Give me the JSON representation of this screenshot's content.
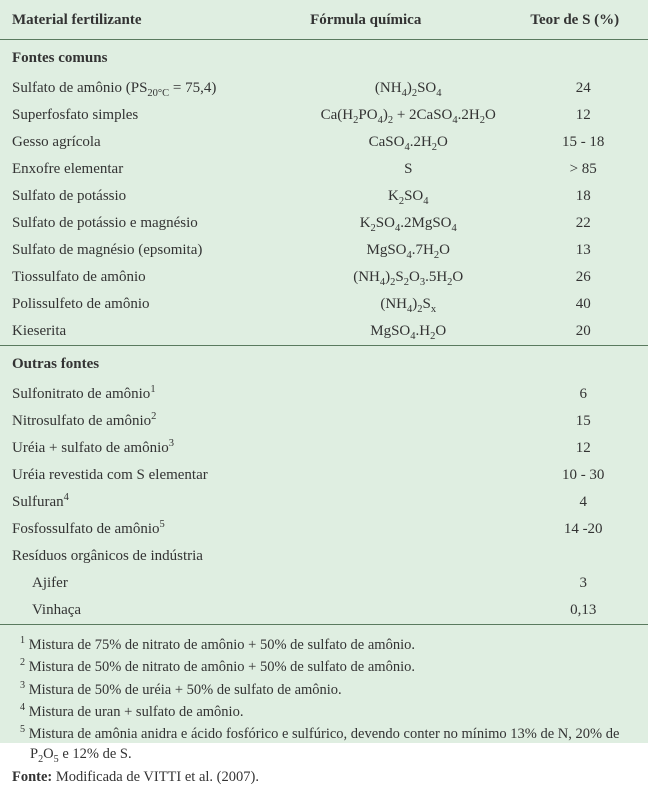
{
  "colors": {
    "background": "#dfeee1",
    "text": "#333333",
    "rule": "#5a7a5f"
  },
  "header": {
    "col1": "Material fertilizante",
    "col2": "Fórmula química",
    "col3": "Teor de S (%)"
  },
  "sections": {
    "common": "Fontes comuns",
    "other": "Outras fontes"
  },
  "rows_common": [
    {
      "material_html": "Sulfato de amônio (PS<sub>20°C</sub> = 75,4)",
      "formula_html": "(NH<sub>4</sub>)<sub>2</sub>SO<sub>4</sub>",
      "teor": "24"
    },
    {
      "material_html": "Superfosfato simples",
      "formula_html": "Ca(H<sub>2</sub>PO<sub>4</sub>)<sub>2</sub> + 2CaSO<sub>4</sub>.2H<sub>2</sub>O",
      "teor": "12"
    },
    {
      "material_html": "Gesso agrícola",
      "formula_html": "CaSO<sub>4</sub>.2H<sub>2</sub>O",
      "teor": "15 - 18"
    },
    {
      "material_html": "Enxofre elementar",
      "formula_html": "S",
      "teor": "> 85"
    },
    {
      "material_html": "Sulfato de potássio",
      "formula_html": "K<sub>2</sub>SO<sub>4</sub>",
      "teor": "18"
    },
    {
      "material_html": "Sulfato de potássio e magnésio",
      "formula_html": "K<sub>2</sub>SO<sub>4</sub>.2MgSO<sub>4</sub>",
      "teor": "22"
    },
    {
      "material_html": "Sulfato de magnésio (epsomita)",
      "formula_html": "MgSO<sub>4</sub>.7H<sub>2</sub>O",
      "teor": "13"
    },
    {
      "material_html": "Tiossulfato de amônio",
      "formula_html": "(NH<sub>4</sub>)<sub>2</sub>S<sub>2</sub>O<sub>3</sub>.5H<sub>2</sub>O",
      "teor": "26"
    },
    {
      "material_html": "Polissulfeto de amônio",
      "formula_html": "(NH<sub>4</sub>)<sub>2</sub>S<sub>x</sub>",
      "teor": "40"
    },
    {
      "material_html": "Kieserita",
      "formula_html": "MgSO<sub>4</sub>.H<sub>2</sub>O",
      "teor": "20"
    }
  ],
  "rows_other": [
    {
      "material_html": "Sulfonitrato de amônio<sup>1</sup>",
      "formula_html": "",
      "teor": "6"
    },
    {
      "material_html": "Nitrosulfato de amônio<sup>2</sup>",
      "formula_html": "",
      "teor": "15"
    },
    {
      "material_html": "Uréia + sulfato de amônio<sup>3</sup>",
      "formula_html": "",
      "teor": "12"
    },
    {
      "material_html": "Uréia revestida com S elementar",
      "formula_html": "",
      "teor": "10 - 30"
    },
    {
      "material_html": "Sulfuran<sup>4</sup>",
      "formula_html": "",
      "teor": "4"
    },
    {
      "material_html": "Fosfossulfato de amônio<sup>5</sup>",
      "formula_html": "",
      "teor": "14 -20"
    },
    {
      "material_html": "Resíduos orgânicos de indústria",
      "formula_html": "",
      "teor": ""
    },
    {
      "material_html": "Ajifer",
      "formula_html": "",
      "teor": "3",
      "indent": true
    },
    {
      "material_html": "Vinhaça",
      "formula_html": "",
      "teor": "0,13",
      "indent": true
    }
  ],
  "footnotes": [
    "<sup>1</sup> Mistura de 75% de nitrato de amônio + 50% de sulfato de amônio.",
    "<sup>2</sup> Mistura de 50% de nitrato de amônio + 50% de sulfato de amônio.",
    "<sup>3</sup> Mistura de 50% de uréia + 50% de sulfato de amônio.",
    "<sup>4</sup> Mistura de uran + sulfato de amônio.",
    "<sup>5</sup> Mistura de amônia anidra e ácido fosfórico e sulfúrico, devendo conter no mínimo 13% de N, 20% de P<sub>2</sub>O<sub>5</sub> e 12% de S."
  ],
  "source_html": "<b>Fonte:</b> Modificada de VITTI et al. (2007)."
}
